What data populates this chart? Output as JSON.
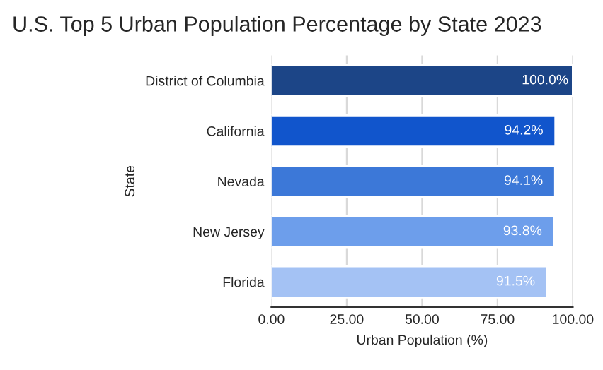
{
  "chart_data": {
    "type": "bar",
    "orientation": "horizontal",
    "title": "U.S. Top 5 Urban Population Percentage by State 2023",
    "xlabel": "Urban Population (%)",
    "ylabel": "State",
    "categories": [
      "District of Columbia",
      "California",
      "Nevada",
      "New Jersey",
      "Florida"
    ],
    "values": [
      100.0,
      94.2,
      94.1,
      93.8,
      91.5
    ],
    "colors": [
      "#1c4587",
      "#1155cc",
      "#3c78d8",
      "#6d9eeb",
      "#a4c2f4"
    ],
    "value_labels": [
      "100.0%",
      "94.2%",
      "94.1%",
      "93.8%",
      "91.5%"
    ],
    "xlim": [
      0,
      100
    ],
    "xticks": [
      {
        "value": 0,
        "label": "0.00"
      },
      {
        "value": 25,
        "label": "25.00"
      },
      {
        "value": 50,
        "label": "50.00"
      },
      {
        "value": 75,
        "label": "75.00"
      },
      {
        "value": 100,
        "label": "100.00"
      }
    ],
    "grid": "x",
    "legend": false
  }
}
